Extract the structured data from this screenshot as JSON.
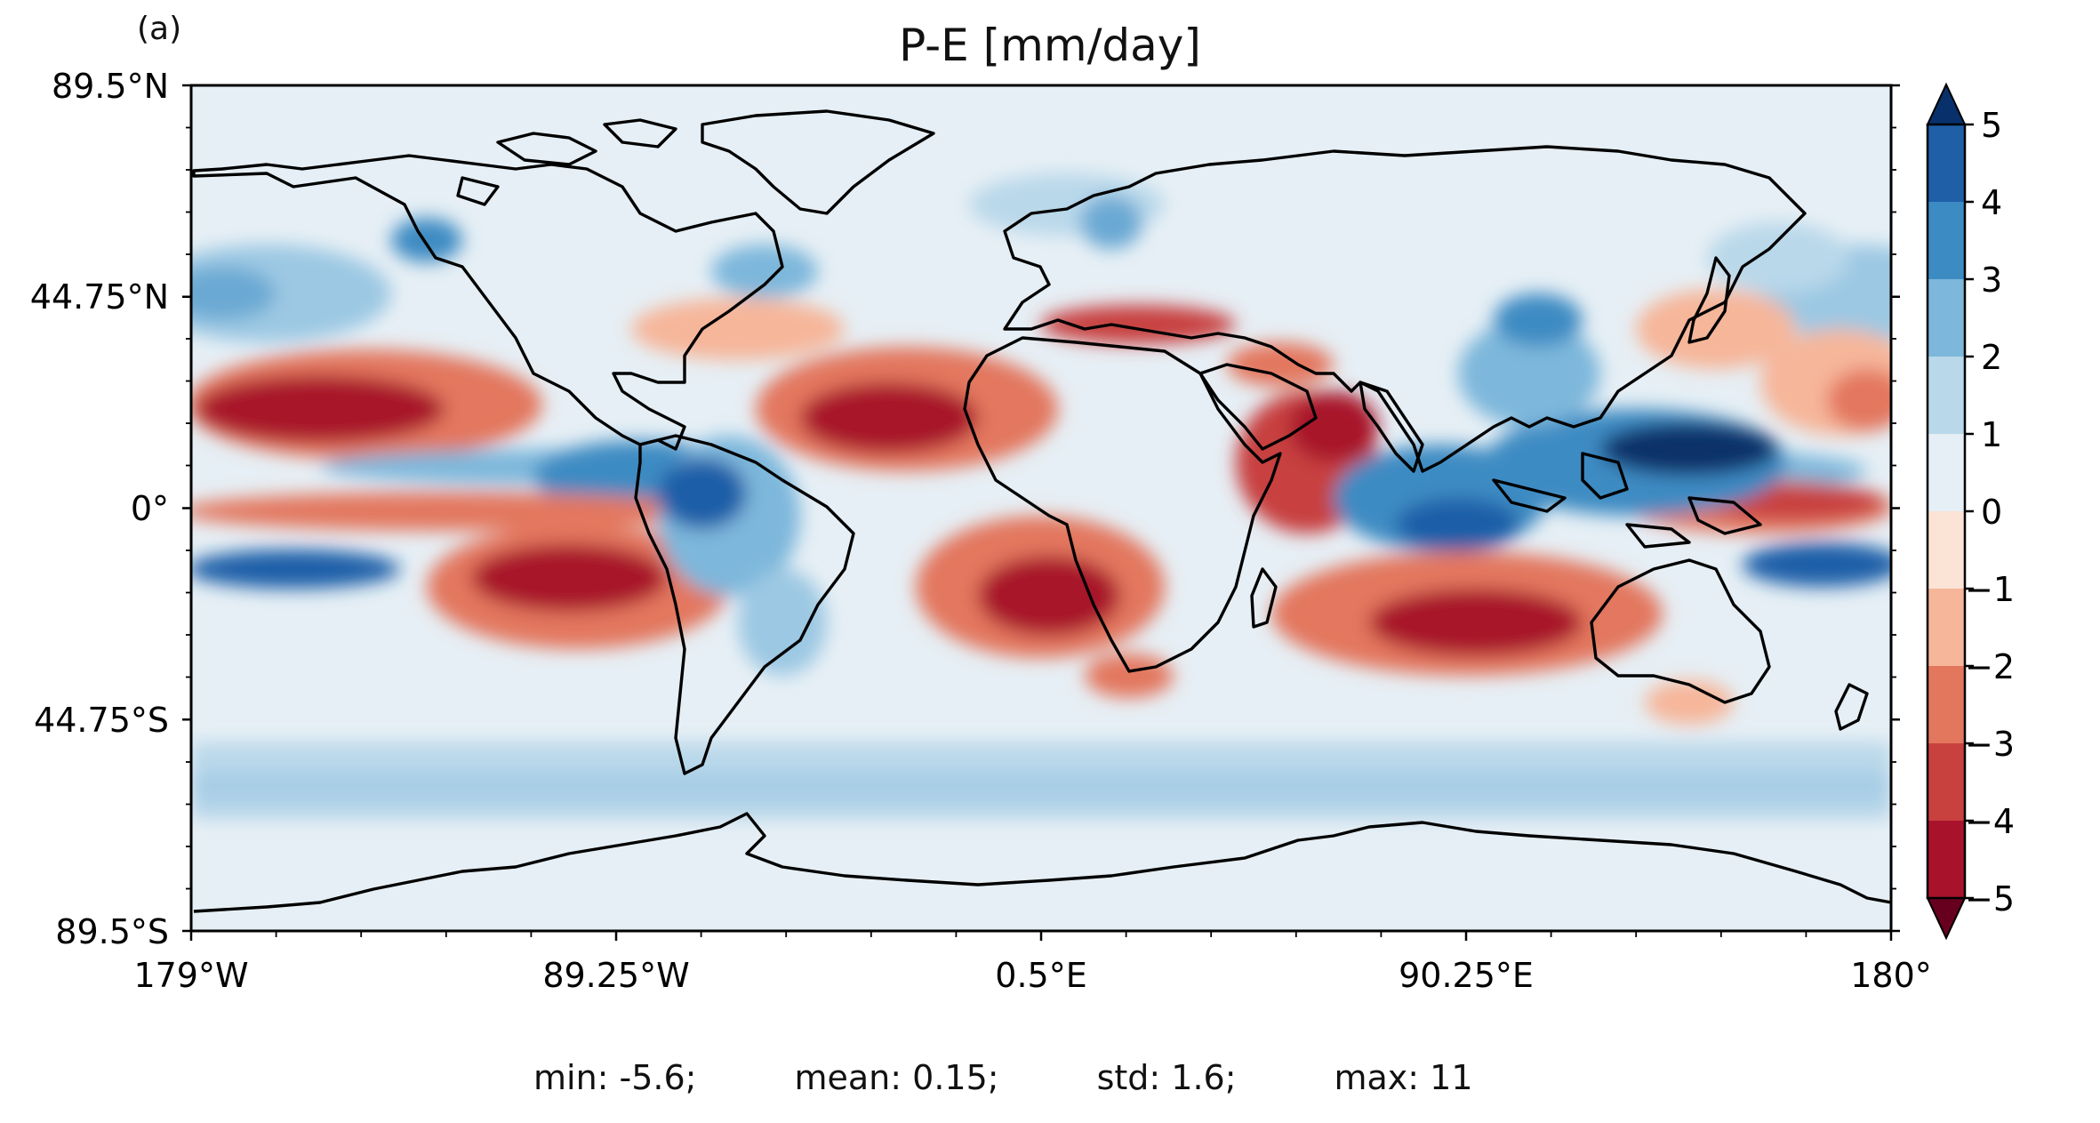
{
  "panel_label": "(a)",
  "title": "P-E [mm/day]",
  "lat_ticks": [
    "89.5°N",
    "44.75°N",
    "0°",
    "44.75°S",
    "89.5°S"
  ],
  "lon_ticks": [
    "179°W",
    "89.25°W",
    "0.5°E",
    "90.25°E",
    "180°"
  ],
  "colorbar": {
    "ticks": [
      "5",
      "4",
      "3",
      "2",
      "1",
      "0",
      "−1",
      "−2",
      "−3",
      "−4",
      "−5"
    ],
    "extend": "both",
    "colors": [
      "#08306b",
      "#1f5fa8",
      "#3d8bc3",
      "#7db7db",
      "#b9d8ea",
      "#e6eff5",
      "#fbe3d6",
      "#f6b69a",
      "#e3775e",
      "#c8413f",
      "#a8132b",
      "#67001f"
    ]
  },
  "stats": {
    "min": "min: -5.6;",
    "mean": "mean: 0.15;",
    "std": "std: 1.6;",
    "max": "max: 11"
  }
}
